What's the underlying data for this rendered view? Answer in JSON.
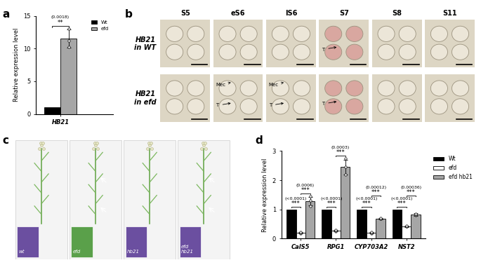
{
  "chart_data": [
    {
      "panel_label": "a",
      "type": "bar",
      "y_label": "Relative expression level",
      "categories": [
        "HB21"
      ],
      "series": [
        {
          "name": "Wt",
          "color": "#000000",
          "values": [
            1
          ]
        },
        {
          "name": "efd",
          "color": "#a6a6a6",
          "values": [
            11.5
          ],
          "errors": [
            1.4
          ],
          "points": [
            [
              10.3,
              11.2,
              13.0
            ]
          ]
        }
      ],
      "ylim": [
        0,
        15
      ],
      "yticks": [
        0,
        5,
        10,
        15
      ],
      "legend": "upper right",
      "significance": [
        {
          "category": 0,
          "pair": [
            0,
            1
          ],
          "stars": "**",
          "p_value": "(0.0018)"
        }
      ]
    },
    {
      "panel_label": "d",
      "type": "bar",
      "y_label": "Relative expression level",
      "categories": [
        "CalS5",
        "RPG1",
        "CYP703A2",
        "NST2"
      ],
      "series": [
        {
          "name": "Wt",
          "color": "#000000",
          "values": [
            1,
            1,
            1,
            1
          ]
        },
        {
          "name": "efd",
          "color": "#ffffff",
          "values": [
            0.2,
            0.27,
            0.2,
            0.42
          ],
          "errors": [
            0.02,
            0.03,
            0.03,
            0.02
          ],
          "points": [
            [
              0.18,
              0.2,
              0.21
            ],
            [
              0.24,
              0.27,
              0.3
            ],
            [
              0.17,
              0.2,
              0.22
            ],
            [
              0.41,
              0.42,
              0.44
            ]
          ]
        },
        {
          "name": "efd hb21",
          "color": "#a6a6a6",
          "values": [
            1.28,
            2.45,
            0.68,
            0.82
          ],
          "errors": [
            0.15,
            0.25,
            0.02,
            0.05
          ],
          "points": [
            [
              1.1,
              1.3,
              1.45
            ],
            [
              2.2,
              2.45,
              2.75
            ],
            [
              0.67,
              0.68,
              0.7
            ],
            [
              0.8,
              0.82,
              0.85
            ]
          ]
        }
      ],
      "ylim": [
        0,
        3
      ],
      "yticks": [
        0,
        1,
        2,
        3
      ],
      "legend": "right",
      "significance": [
        {
          "category": 0,
          "pair": [
            0,
            1
          ],
          "stars": "***",
          "p_value": "(<0.0001)"
        },
        {
          "category": 0,
          "pair": [
            1,
            2
          ],
          "stars": "***",
          "p_value": "(0.0006)"
        },
        {
          "category": 1,
          "pair": [
            0,
            1
          ],
          "stars": "***",
          "p_value": "(<0.0001)"
        },
        {
          "category": 1,
          "pair": [
            1,
            2
          ],
          "stars": "***",
          "p_value": "(0.0003)"
        },
        {
          "category": 2,
          "pair": [
            0,
            1
          ],
          "stars": "***",
          "p_value": "(<0.0001)"
        },
        {
          "category": 2,
          "pair": [
            1,
            2
          ],
          "stars": "***",
          "p_value": "(0.00012)"
        },
        {
          "category": 3,
          "pair": [
            0,
            1
          ],
          "stars": "***",
          "p_value": "(<0.0001)"
        },
        {
          "category": 3,
          "pair": [
            1,
            2
          ],
          "stars": "***",
          "p_value": "(0.00036)"
        }
      ]
    }
  ],
  "micrographs": {
    "panel_label": "b",
    "columns": [
      "S5",
      "eS6",
      "lS6",
      "S7",
      "S8",
      "S11"
    ],
    "rows": [
      "HB21\nin WT",
      "HB21\nin efd"
    ],
    "annotations": [
      {
        "row": 0,
        "column": 3,
        "texts": [
          "T"
        ]
      },
      {
        "row": 1,
        "column": 1,
        "texts": [
          "Mec",
          "T"
        ]
      },
      {
        "row": 1,
        "column": 2,
        "texts": [
          "Mec",
          "T"
        ]
      },
      {
        "row": 1,
        "column": 3,
        "texts": [
          "T"
        ]
      }
    ]
  },
  "plants": {
    "panel_label": "c",
    "labels": [
      "wt",
      "efd",
      "hb21",
      "efd\nhb21"
    ]
  }
}
